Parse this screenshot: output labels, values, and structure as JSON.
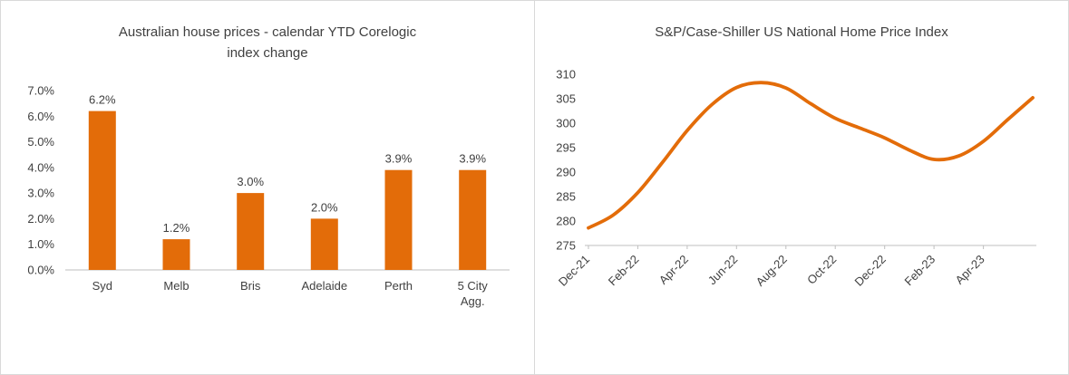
{
  "window": {
    "background": "#ffffff",
    "border_color": "#d9d9d9"
  },
  "chart_data": [
    {
      "type": "bar",
      "title": "Australian house prices - calendar YTD Corelogic index change",
      "categories": [
        "Syd",
        "Melb",
        "Bris",
        "Adelaide",
        "Perth",
        "5 City Agg."
      ],
      "values": [
        6.2,
        1.2,
        3.0,
        2.0,
        3.9,
        3.9
      ],
      "data_labels": [
        "6.2%",
        "1.2%",
        "3.0%",
        "2.0%",
        "3.9%",
        "3.9%"
      ],
      "ylim": [
        0,
        7
      ],
      "ytick_labels": [
        "0.0%",
        "1.0%",
        "2.0%",
        "3.0%",
        "4.0%",
        "5.0%",
        "6.0%",
        "7.0%"
      ],
      "xlabel": "",
      "ylabel": "",
      "grid": false,
      "legend": false,
      "bar_color": "#e36c09",
      "axis_color": "#bfbfbf",
      "text_color": "#404040"
    },
    {
      "type": "line",
      "title": "S&P/Case-Shiller US National Home Price Index",
      "x": [
        "Dec-21",
        "Jan-22",
        "Feb-22",
        "Mar-22",
        "Apr-22",
        "May-22",
        "Jun-22",
        "Jul-22",
        "Aug-22",
        "Sep-22",
        "Oct-22",
        "Nov-22",
        "Dec-22",
        "Jan-23",
        "Feb-23",
        "Mar-23",
        "Apr-23",
        "May-23",
        "Jun-23"
      ],
      "values": [
        278.6,
        281.2,
        285.8,
        292.0,
        298.5,
        303.8,
        307.3,
        308.3,
        307.2,
        304.0,
        301.0,
        299.0,
        297.0,
        294.5,
        292.6,
        293.3,
        296.3,
        300.8,
        305.2
      ],
      "xtick_labels": [
        "Dec-21",
        "Feb-22",
        "Apr-22",
        "Jun-22",
        "Aug-22",
        "Oct-22",
        "Dec-22",
        "Feb-23",
        "Apr-23"
      ],
      "ylim": [
        275,
        310
      ],
      "ytick_labels": [
        "275",
        "280",
        "285",
        "290",
        "295",
        "300",
        "305",
        "310"
      ],
      "xlabel": "",
      "ylabel": "",
      "grid": false,
      "legend": false,
      "line_color": "#e36c09",
      "axis_color": "#bfbfbf",
      "text_color": "#404040"
    }
  ]
}
